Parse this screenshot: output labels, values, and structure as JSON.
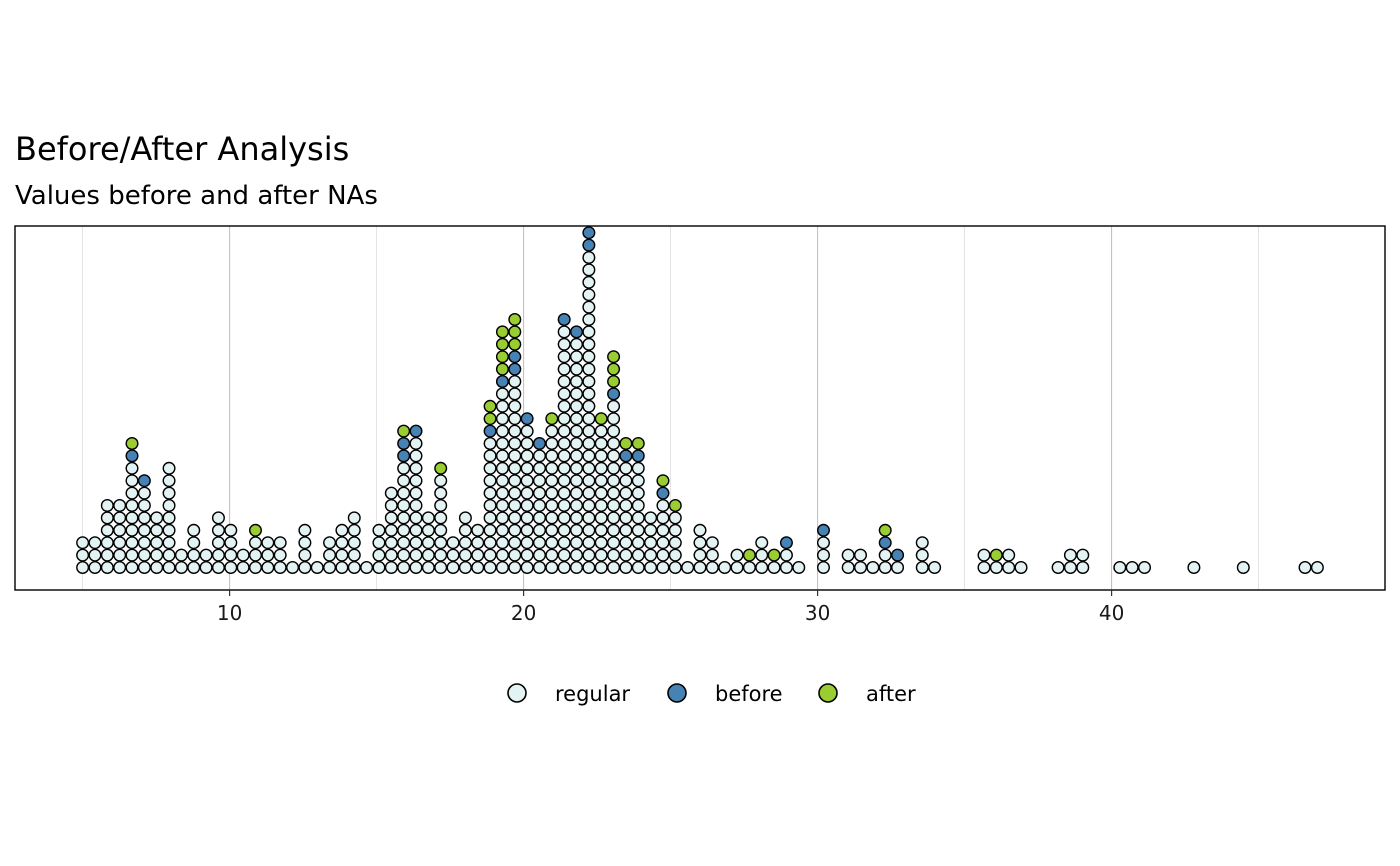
{
  "chart_data": {
    "type": "dotplot",
    "title": "Before/After Analysis",
    "subtitle": "Values before and after NAs",
    "xlabel": "",
    "ylabel": "",
    "xlim": [
      2.7,
      49.3
    ],
    "xticks": [
      10,
      20,
      30,
      40
    ],
    "grid": "vertical",
    "legend_position": "bottom",
    "legend": [
      {
        "key": "regular",
        "label": "regular",
        "color": "#E3F2F2"
      },
      {
        "key": "before",
        "label": "before",
        "color": "#4682B4"
      },
      {
        "key": "after",
        "label": "after",
        "color": "#9ACD32"
      }
    ],
    "stacks": [
      {
        "x": 5.0,
        "cat": "RRR"
      },
      {
        "x": 5.42,
        "cat": "RRR"
      },
      {
        "x": 5.84,
        "cat": "RRRRRR"
      },
      {
        "x": 6.26,
        "cat": "RRRRRR"
      },
      {
        "x": 6.68,
        "cat": "RRRRRRRRRBA"
      },
      {
        "x": 7.1,
        "cat": "RRRRRRRB"
      },
      {
        "x": 7.52,
        "cat": "RRRRR"
      },
      {
        "x": 7.94,
        "cat": "RRRRRRRRR"
      },
      {
        "x": 8.36,
        "cat": "RR"
      },
      {
        "x": 8.78,
        "cat": "RRRR"
      },
      {
        "x": 9.2,
        "cat": "RR"
      },
      {
        "x": 9.62,
        "cat": "RRRRR"
      },
      {
        "x": 10.04,
        "cat": "RRRR"
      },
      {
        "x": 10.46,
        "cat": "RR"
      },
      {
        "x": 10.88,
        "cat": "RRRA"
      },
      {
        "x": 11.3,
        "cat": "RRR"
      },
      {
        "x": 11.72,
        "cat": "RRR"
      },
      {
        "x": 12.14,
        "cat": "R"
      },
      {
        "x": 12.56,
        "cat": "RRRR"
      },
      {
        "x": 12.98,
        "cat": "R"
      },
      {
        "x": 13.4,
        "cat": "RRR"
      },
      {
        "x": 13.82,
        "cat": "RRRR"
      },
      {
        "x": 14.24,
        "cat": "RRRRR"
      },
      {
        "x": 14.66,
        "cat": "R"
      },
      {
        "x": 15.08,
        "cat": "RRRR"
      },
      {
        "x": 15.5,
        "cat": "RRRRRRR"
      },
      {
        "x": 15.92,
        "cat": "RRRRRRRRRBBA"
      },
      {
        "x": 16.34,
        "cat": "RRRRRRRRRRRB"
      },
      {
        "x": 16.76,
        "cat": "RRRRR"
      },
      {
        "x": 17.18,
        "cat": "RRRRRRRRA"
      },
      {
        "x": 17.6,
        "cat": "RRR"
      },
      {
        "x": 18.02,
        "cat": "RRRRR"
      },
      {
        "x": 18.44,
        "cat": "RRRR"
      },
      {
        "x": 18.86,
        "cat": "RRRRRRRRRRRBAA"
      },
      {
        "x": 19.28,
        "cat": "RRRRRRRRRRRRRRRBAAAA"
      },
      {
        "x": 19.7,
        "cat": "RRRRRRRRRRRRRRRRBBAAA"
      },
      {
        "x": 20.12,
        "cat": "RRRRRRRRRRRRB"
      },
      {
        "x": 20.54,
        "cat": "RRRRRRRRRRB"
      },
      {
        "x": 20.96,
        "cat": "RRRRRRRRRRRRA"
      },
      {
        "x": 21.38,
        "cat": "RRRRRRRRRRRRRRRRRRRRB"
      },
      {
        "x": 21.8,
        "cat": "RRRRRRRRRRRRRRRRRRRB"
      },
      {
        "x": 22.22,
        "cat": "RRRRRRRRRRRRRRRRRRRRRRRRRRBBBBB"
      },
      {
        "x": 22.64,
        "cat": "RRRRRRRRRRRRA"
      },
      {
        "x": 23.06,
        "cat": "RRRRRRRRRRRRRRBAAA"
      },
      {
        "x": 23.48,
        "cat": "RRRRRRRRRBA"
      },
      {
        "x": 23.9,
        "cat": "RRRRRRRRRBA"
      },
      {
        "x": 24.32,
        "cat": "RRRRR"
      },
      {
        "x": 24.74,
        "cat": "RRRRRRBA"
      },
      {
        "x": 25.16,
        "cat": "RRRRRA"
      },
      {
        "x": 25.58,
        "cat": "R"
      },
      {
        "x": 26.0,
        "cat": "RRRR"
      },
      {
        "x": 26.42,
        "cat": "RRR"
      },
      {
        "x": 26.84,
        "cat": "R"
      },
      {
        "x": 27.26,
        "cat": "RR"
      },
      {
        "x": 27.68,
        "cat": "RA"
      },
      {
        "x": 28.1,
        "cat": "RRR"
      },
      {
        "x": 28.52,
        "cat": "RA"
      },
      {
        "x": 28.94,
        "cat": "RRB"
      },
      {
        "x": 29.36,
        "cat": "R"
      },
      {
        "x": 30.2,
        "cat": "RRRB"
      },
      {
        "x": 31.04,
        "cat": "RR"
      },
      {
        "x": 31.46,
        "cat": "RR"
      },
      {
        "x": 31.88,
        "cat": "R"
      },
      {
        "x": 32.3,
        "cat": "RRBA"
      },
      {
        "x": 32.72,
        "cat": "RB"
      },
      {
        "x": 33.56,
        "cat": "RRR"
      },
      {
        "x": 33.98,
        "cat": "R"
      },
      {
        "x": 35.66,
        "cat": "RR"
      },
      {
        "x": 36.08,
        "cat": "RA"
      },
      {
        "x": 36.5,
        "cat": "RR"
      },
      {
        "x": 36.92,
        "cat": "R"
      },
      {
        "x": 38.18,
        "cat": "R"
      },
      {
        "x": 38.6,
        "cat": "RR"
      },
      {
        "x": 39.02,
        "cat": "RR"
      },
      {
        "x": 40.28,
        "cat": "R"
      },
      {
        "x": 40.7,
        "cat": "R"
      },
      {
        "x": 41.12,
        "cat": "R"
      },
      {
        "x": 42.8,
        "cat": "R"
      },
      {
        "x": 44.48,
        "cat": "R"
      },
      {
        "x": 46.58,
        "cat": "R"
      },
      {
        "x": 47.0,
        "cat": "R"
      }
    ]
  }
}
